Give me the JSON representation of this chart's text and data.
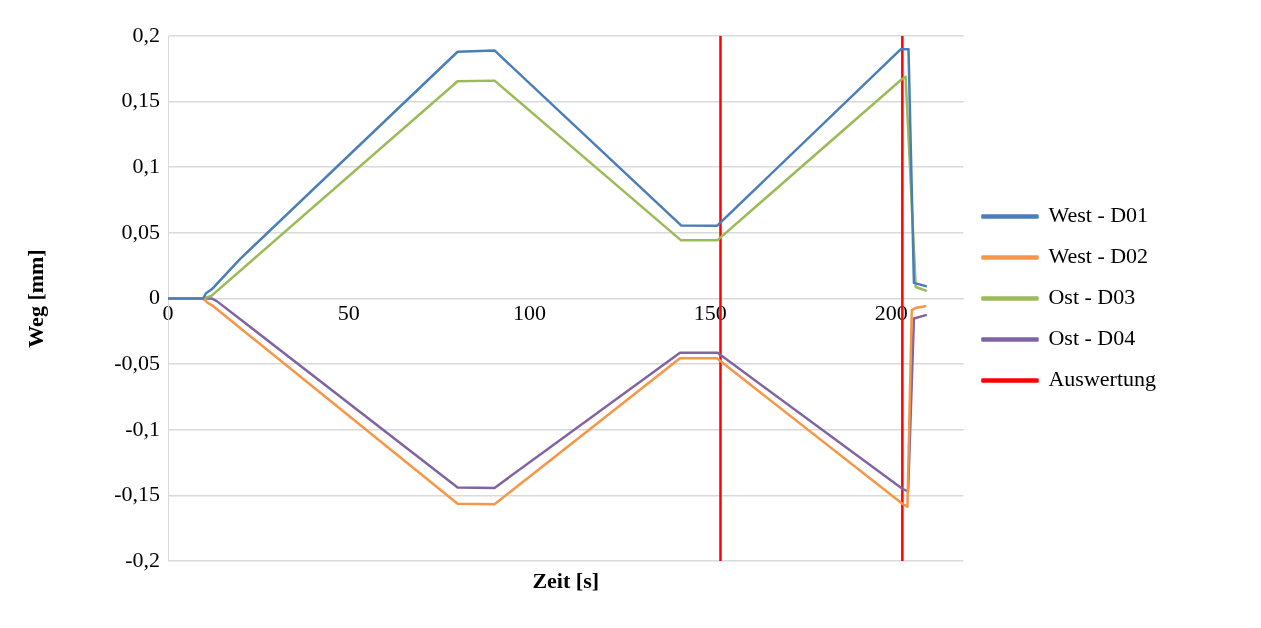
{
  "chart_data": {
    "type": "line",
    "xlabel": "Zeit [s]",
    "ylabel": "Weg [mm]",
    "xlim": [
      0,
      220
    ],
    "xticks": [
      0,
      50,
      100,
      150,
      200
    ],
    "ylim": [
      -0.2,
      0.2
    ],
    "yticks": [
      {
        "value": -0.2,
        "label": "-0,2"
      },
      {
        "value": -0.15,
        "label": "-0,15"
      },
      {
        "value": -0.1,
        "label": "-0,1"
      },
      {
        "value": -0.05,
        "label": "-0,05"
      },
      {
        "value": 0,
        "label": "0"
      },
      {
        "value": 0.05,
        "label": "0,05"
      },
      {
        "value": 0.1,
        "label": "0,1"
      },
      {
        "value": 0.15,
        "label": "0,15"
      },
      {
        "value": 0.2,
        "label": "0,2"
      }
    ],
    "grid": "y",
    "legend": "right",
    "marker": "none",
    "line_style": "solid",
    "series": [
      {
        "name": "West - D01",
        "color": "#4a7ebb",
        "x": [
          0,
          9.7,
          10.5,
          12.1,
          19.9,
          80.1,
          90.3,
          141.9,
          151.9,
          202.7,
          204.8,
          206.3,
          209.6
        ],
        "values": [
          0,
          0,
          0.004,
          0.007,
          0.03,
          0.188,
          0.189,
          0.0557,
          0.0555,
          0.19,
          0.19,
          0.0119,
          0.0094
        ]
      },
      {
        "name": "West - D02",
        "color": "#f79646",
        "x": [
          0,
          9.7,
          11,
          12.1,
          80.1,
          90.3,
          141.6,
          151.8,
          203.1,
          204.5,
          205.7,
          207,
          209.4
        ],
        "values": [
          0,
          0,
          -0.0033,
          -0.005,
          -0.1564,
          -0.1567,
          -0.0456,
          -0.0456,
          -0.1564,
          -0.1587,
          -0.0089,
          -0.007,
          -0.0059
        ]
      },
      {
        "name": "Ost - D03",
        "color": "#9bbb59",
        "x": [
          0,
          9.7,
          12,
          80.1,
          90.3,
          141.9,
          151.9,
          202.7,
          204,
          206.8,
          209.6
        ],
        "values": [
          0,
          0,
          0.002,
          0.1655,
          0.166,
          0.0443,
          0.0443,
          0.1665,
          0.169,
          0.0088,
          0.006
        ]
      },
      {
        "name": "Ost - D04",
        "color": "#8064a2",
        "x": [
          0,
          12.1,
          13.5,
          80.1,
          90.3,
          141.6,
          152,
          203.1,
          204.7,
          206.3,
          209.6
        ],
        "values": [
          0,
          0,
          -0.002,
          -0.144,
          -0.1443,
          -0.0414,
          -0.0414,
          -0.145,
          -0.147,
          -0.0152,
          -0.0127
        ]
      },
      {
        "name": "Auswertung",
        "color": "#ff0000",
        "x": [
          152.8,
          152.8
        ],
        "values": [
          -0.2,
          0.2
        ]
      },
      {
        "color": "#ff0000",
        "x": [
          203.1,
          203.1
        ],
        "values": [
          -0.2,
          0.2
        ]
      }
    ]
  }
}
